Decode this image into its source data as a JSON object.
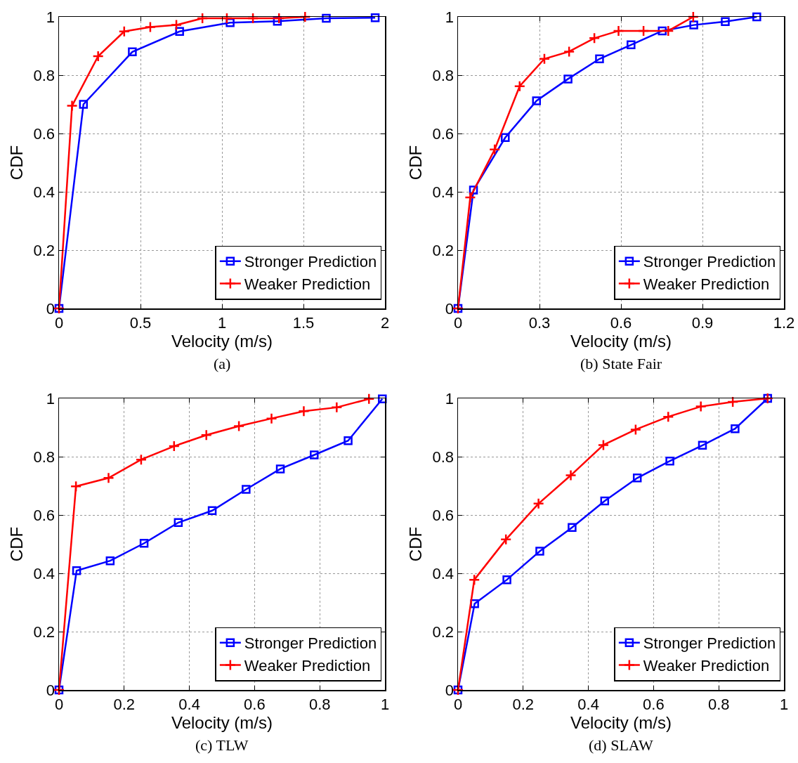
{
  "chart_data": [
    {
      "type": "line",
      "xlabel": "Velocity (m/s)",
      "ylabel": "CDF",
      "annotations": [
        "(a)"
      ],
      "xlim": [
        0,
        2
      ],
      "xticks": [
        0,
        0.5,
        1,
        1.5,
        2
      ],
      "ylim": [
        0,
        1
      ],
      "yticks": [
        0,
        0.2,
        0.4,
        0.6,
        0.8,
        1
      ],
      "grid": true,
      "legend": "bottom right",
      "series": [
        {
          "name": "Stronger Prediction",
          "color": "#0000ff",
          "marker": "square",
          "x": [
            0,
            0.15,
            0.45,
            0.74,
            1.05,
            1.34,
            1.64,
            1.94
          ],
          "values": [
            0,
            0.7,
            0.88,
            0.95,
            0.98,
            0.985,
            0.995,
            0.997
          ]
        },
        {
          "name": "Weaker Prediction",
          "color": "#ff0000",
          "marker": "cross",
          "x": [
            0,
            0.08,
            0.24,
            0.4,
            0.56,
            0.72,
            0.88,
            1.03,
            1.19,
            1.35,
            1.51
          ],
          "values": [
            0,
            0.695,
            0.865,
            0.95,
            0.965,
            0.972,
            0.995,
            0.995,
            0.995,
            0.995,
            1.0
          ]
        }
      ]
    },
    {
      "type": "line",
      "xlabel": "Velocity (m/s)",
      "ylabel": "CDF",
      "annotations": [
        "(b) State Fair"
      ],
      "xlim": [
        0,
        1.2
      ],
      "xticks": [
        0,
        0.3,
        0.6,
        0.9,
        1.2
      ],
      "ylim": [
        0,
        1
      ],
      "yticks": [
        0,
        0.2,
        0.4,
        0.6,
        0.8,
        1
      ],
      "grid": true,
      "legend": "bottom right",
      "series": [
        {
          "name": "Stronger Prediction",
          "color": "#0000ff",
          "marker": "square",
          "x": [
            0,
            0.057,
            0.174,
            0.289,
            0.405,
            0.521,
            0.637,
            0.752,
            0.868,
            0.984,
            1.1
          ],
          "values": [
            0,
            0.406,
            0.586,
            0.712,
            0.787,
            0.856,
            0.904,
            0.952,
            0.972,
            0.984,
            1.0
          ]
        },
        {
          "name": "Weaker Prediction",
          "color": "#ff0000",
          "marker": "cross",
          "x": [
            0,
            0.045,
            0.135,
            0.227,
            0.318,
            0.409,
            0.502,
            0.591,
            0.683,
            0.774,
            0.866
          ],
          "values": [
            0,
            0.381,
            0.545,
            0.762,
            0.856,
            0.881,
            0.927,
            0.952,
            0.952,
            0.952,
            1.0
          ]
        }
      ]
    },
    {
      "type": "line",
      "xlabel": "Velocity (m/s)",
      "ylabel": "CDF",
      "annotations": [
        "(c) TLW"
      ],
      "xlim": [
        0,
        1
      ],
      "xticks": [
        0,
        0.2,
        0.4,
        0.6,
        0.8,
        1
      ],
      "ylim": [
        0,
        1
      ],
      "yticks": [
        0,
        0.2,
        0.4,
        0.6,
        0.8,
        1
      ],
      "grid": true,
      "legend": "bottom right",
      "series": [
        {
          "name": "Stronger Prediction",
          "color": "#0000ff",
          "marker": "square",
          "x": [
            0,
            0.054,
            0.157,
            0.261,
            0.366,
            0.47,
            0.574,
            0.679,
            0.783,
            0.887,
            0.992
          ],
          "values": [
            0,
            0.409,
            0.443,
            0.503,
            0.574,
            0.615,
            0.688,
            0.758,
            0.806,
            0.855,
            0.998
          ]
        },
        {
          "name": "Weaker Prediction",
          "color": "#ff0000",
          "marker": "cross",
          "x": [
            0,
            0.052,
            0.152,
            0.252,
            0.353,
            0.452,
            0.552,
            0.652,
            0.751,
            0.852,
            0.951
          ],
          "values": [
            0,
            0.698,
            0.727,
            0.79,
            0.836,
            0.874,
            0.905,
            0.931,
            0.956,
            0.969,
            0.998
          ]
        }
      ]
    },
    {
      "type": "line",
      "xlabel": "Velocity (m/s)",
      "ylabel": "CDF",
      "annotations": [
        "(d) SLAW"
      ],
      "xlim": [
        0,
        1
      ],
      "xticks": [
        0,
        0.2,
        0.4,
        0.6,
        0.8,
        1
      ],
      "ylim": [
        0,
        1
      ],
      "yticks": [
        0,
        0.2,
        0.4,
        0.6,
        0.8,
        1
      ],
      "grid": true,
      "legend": "bottom right",
      "series": [
        {
          "name": "Stronger Prediction",
          "color": "#0000ff",
          "marker": "square",
          "x": [
            0,
            0.051,
            0.15,
            0.251,
            0.35,
            0.45,
            0.55,
            0.65,
            0.75,
            0.85,
            0.95
          ],
          "values": [
            0,
            0.296,
            0.378,
            0.476,
            0.557,
            0.648,
            0.727,
            0.785,
            0.839,
            0.896,
            1.0
          ]
        },
        {
          "name": "Weaker Prediction",
          "color": "#ff0000",
          "marker": "cross",
          "x": [
            0,
            0.05,
            0.147,
            0.247,
            0.346,
            0.446,
            0.545,
            0.645,
            0.745,
            0.843,
            0.95
          ],
          "values": [
            0,
            0.378,
            0.516,
            0.639,
            0.736,
            0.84,
            0.893,
            0.937,
            0.972,
            0.988,
            1.0
          ]
        }
      ]
    }
  ]
}
